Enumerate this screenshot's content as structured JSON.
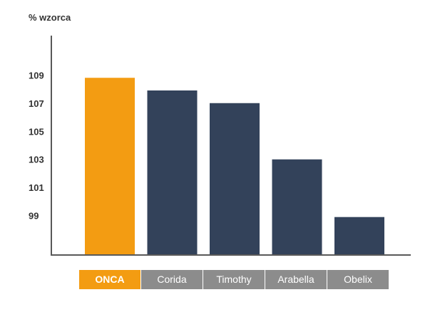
{
  "chart_data": {
    "type": "bar",
    "ylabel": "% wzorca",
    "categories": [
      "ONCA",
      "Corida",
      "Timothy",
      "Arabella",
      "Obelix"
    ],
    "values": [
      108.8,
      107.9,
      107.0,
      103.0,
      98.9
    ],
    "yticks": [
      99,
      101,
      103,
      105,
      107,
      109
    ],
    "ylim": [
      96.2,
      111.8
    ],
    "grid": false,
    "legend": "bottom",
    "colors": {
      "highlight": "#F39C12",
      "default": "#33425A",
      "legend_highlight": "#F39C12",
      "legend_default": "#8C8C8C"
    }
  }
}
